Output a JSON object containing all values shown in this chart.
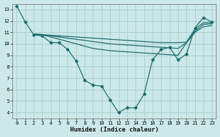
{
  "background_color": "#cce8e8",
  "grid_color": "#aacfcf",
  "line_color": "#1a6b6b",
  "marker_color": "#1a6b6b",
  "xlabel": "Humidex (Indice chaleur)",
  "xlim": [
    -0.5,
    23.5
  ],
  "ylim": [
    3.5,
    13.5
  ],
  "xticks": [
    0,
    1,
    2,
    3,
    4,
    5,
    6,
    7,
    8,
    9,
    10,
    11,
    12,
    13,
    14,
    15,
    16,
    17,
    18,
    19,
    20,
    21,
    22,
    23
  ],
  "yticks": [
    4,
    5,
    6,
    7,
    8,
    9,
    10,
    11,
    12,
    13
  ],
  "line1_x": [
    0,
    1,
    2,
    3,
    4,
    5,
    6,
    7,
    8,
    9,
    10,
    11,
    12,
    13,
    14,
    15,
    16,
    17,
    18,
    19,
    20,
    21,
    22,
    23
  ],
  "line1_y": [
    13.3,
    11.9,
    10.8,
    10.7,
    10.1,
    10.1,
    9.5,
    8.5,
    6.8,
    6.4,
    6.3,
    5.1,
    4.0,
    4.4,
    4.4,
    5.6,
    8.6,
    9.5,
    9.7,
    8.6,
    9.1,
    11.4,
    12.3,
    11.9
  ],
  "line2_x": [
    2,
    3,
    4,
    5,
    6,
    7,
    8,
    9,
    10,
    11,
    12,
    13,
    14,
    15,
    16,
    17,
    18,
    19,
    20,
    21,
    22,
    23
  ],
  "line2_y": [
    10.85,
    10.8,
    10.75,
    10.7,
    10.65,
    10.6,
    10.55,
    10.5,
    10.45,
    10.4,
    10.35,
    10.3,
    10.25,
    10.2,
    10.15,
    10.1,
    10.1,
    10.1,
    10.15,
    11.3,
    11.85,
    11.85
  ],
  "line3_x": [
    2,
    3,
    4,
    5,
    6,
    7,
    8,
    9,
    10,
    11,
    12,
    13,
    14,
    15,
    16,
    17,
    18,
    19,
    20,
    21,
    22,
    23
  ],
  "line3_y": [
    10.85,
    10.8,
    10.7,
    10.6,
    10.5,
    10.4,
    10.3,
    10.2,
    10.1,
    10.0,
    9.95,
    9.9,
    9.85,
    9.8,
    9.75,
    9.7,
    9.65,
    9.6,
    10.1,
    11.1,
    11.7,
    11.75
  ],
  "line4_x": [
    2,
    3,
    4,
    5,
    6,
    7,
    8,
    9,
    10,
    11,
    12,
    13,
    14,
    15,
    16,
    17,
    18,
    19,
    20,
    21,
    22,
    23
  ],
  "line4_y": [
    10.85,
    10.8,
    10.6,
    10.4,
    10.2,
    10.0,
    9.8,
    9.6,
    9.5,
    9.4,
    9.35,
    9.3,
    9.25,
    9.2,
    9.15,
    9.1,
    9.05,
    9.0,
    10.1,
    11.0,
    11.5,
    11.6
  ]
}
